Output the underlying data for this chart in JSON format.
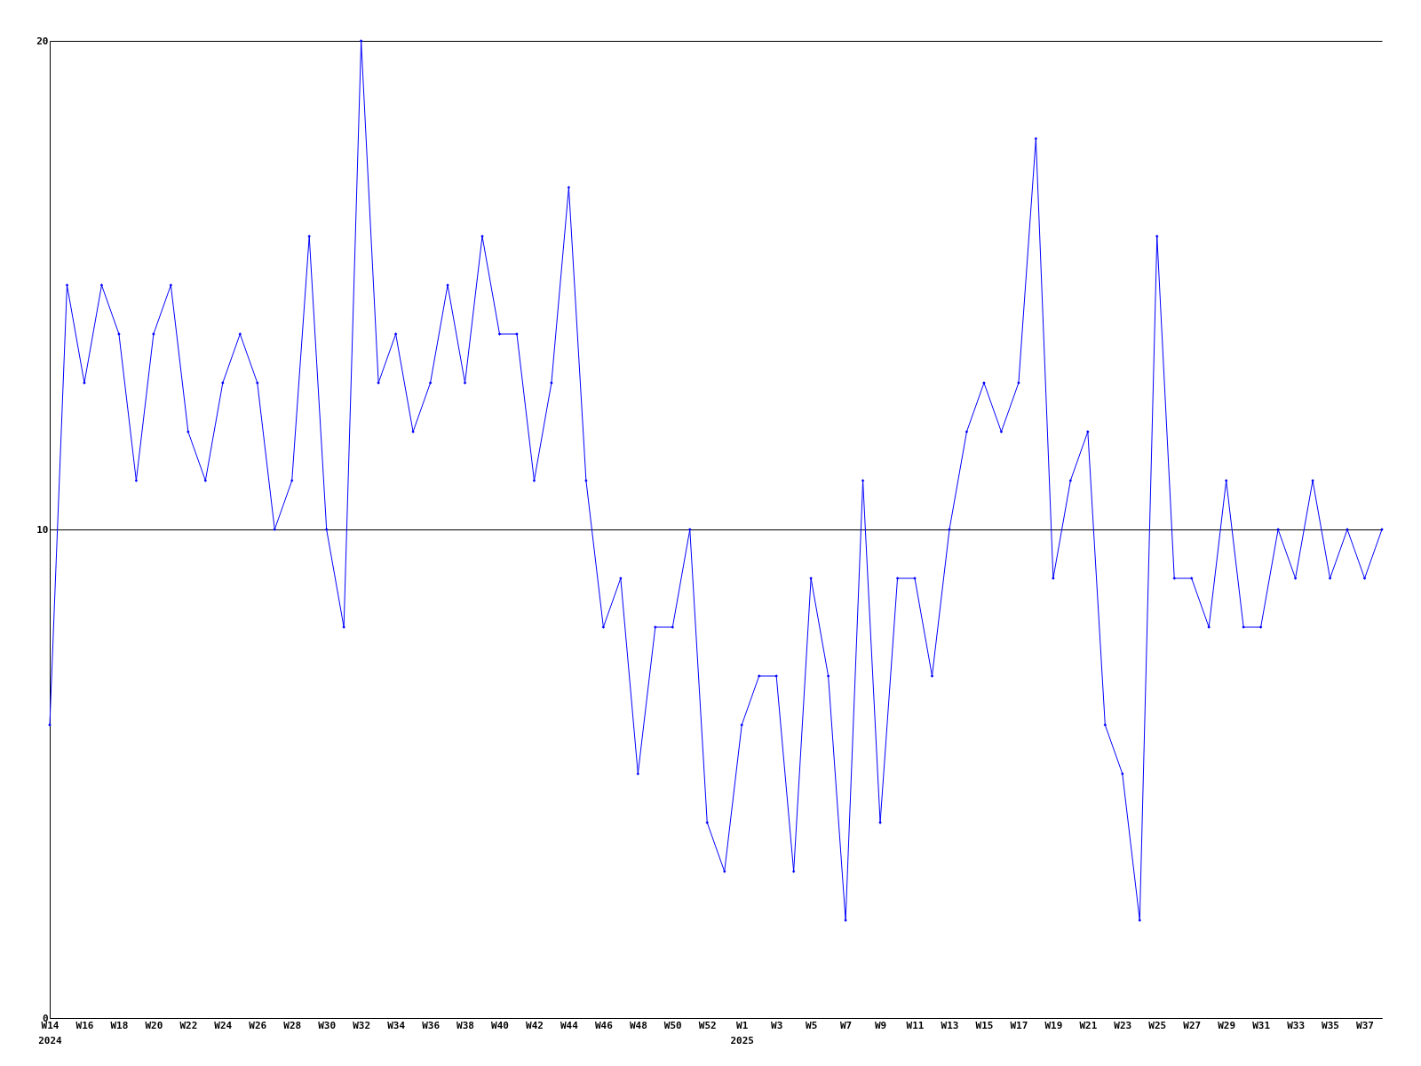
{
  "chart_data": {
    "type": "line",
    "categories": [
      "W14\n2024",
      null,
      "W16",
      null,
      "W18",
      null,
      "W20",
      null,
      "W22",
      null,
      "W24",
      null,
      "W26",
      null,
      "W28",
      null,
      "W30",
      null,
      "W32",
      null,
      "W34",
      null,
      "W36",
      null,
      "W38",
      null,
      "W40",
      null,
      "W42",
      null,
      "W44",
      null,
      "W46",
      null,
      "W48",
      null,
      "W50",
      null,
      "W52",
      null,
      "W1\n2025",
      null,
      "W3",
      null,
      "W5",
      null,
      "W7",
      null,
      "W9",
      null,
      "W11",
      null,
      "W13",
      null,
      "W15",
      null,
      "W17",
      null,
      "W19",
      null,
      "W21",
      null,
      "W23",
      null,
      "W25",
      null,
      "W27",
      null,
      "W29",
      null,
      "W31",
      null,
      "W33",
      null,
      "W35",
      null,
      "W37",
      null
    ],
    "series": [
      {
        "color": "#0000ff",
        "values": [
          6,
          15,
          13,
          15,
          14,
          11,
          14,
          15,
          12,
          11,
          13,
          14,
          13,
          10,
          11,
          16,
          10,
          8,
          20,
          13,
          14,
          12,
          13,
          15,
          13,
          16,
          14,
          14,
          11,
          13,
          17,
          11,
          8,
          9,
          5,
          8,
          8,
          10,
          4,
          3,
          6,
          7,
          7,
          3,
          9,
          7,
          2,
          11,
          4,
          9,
          9,
          7,
          10,
          12,
          13,
          12,
          13,
          18,
          9,
          11,
          12,
          6,
          5,
          2,
          16,
          9,
          9,
          8,
          11,
          8,
          8,
          10,
          9,
          11,
          9,
          10,
          9,
          10
        ]
      }
    ],
    "ylim": [
      0,
      20
    ],
    "yticks": [
      0,
      10,
      20
    ],
    "grid": "y",
    "marker": "diamond"
  }
}
